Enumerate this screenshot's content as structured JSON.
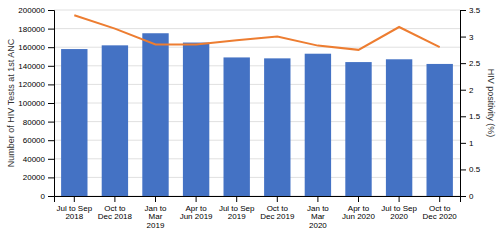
{
  "chart_data": {
    "type": "bar",
    "categories": [
      "Jul to Sep\n2018",
      "Oct to\nDec 2018",
      "Jan to\nMar\n2019",
      "Apr to\nJun 2019",
      "Jul to Sep\n2019",
      "Oct to\nDec 2019",
      "Jan to\nMar\n2020",
      "Apr to\nJun 2020",
      "Jul to Sep\n2020",
      "Oct to\nDec 2020"
    ],
    "series": [
      {
        "type": "bar",
        "color": "#4472C4",
        "values": [
          158000,
          162000,
          175000,
          165000,
          149000,
          148000,
          153000,
          144000,
          147000,
          142000
        ]
      },
      {
        "type": "line",
        "color": "#ED7D31",
        "axis": "y2",
        "values": [
          3.4,
          3.15,
          2.85,
          2.85,
          2.93,
          3.0,
          2.83,
          2.75,
          3.18,
          2.8
        ]
      }
    ],
    "ylabel": "Number of HIV Tests at 1st ANC",
    "y2label": "HIV positivity (%)",
    "ylim": [
      0,
      200000
    ],
    "yticks": [
      0,
      20000,
      40000,
      60000,
      80000,
      100000,
      120000,
      140000,
      160000,
      180000,
      200000
    ],
    "y2lim": [
      0,
      3.5
    ],
    "y2ticks": [
      0,
      0.5,
      1,
      1.5,
      2,
      2.5,
      3,
      3.5
    ],
    "grid": true
  }
}
